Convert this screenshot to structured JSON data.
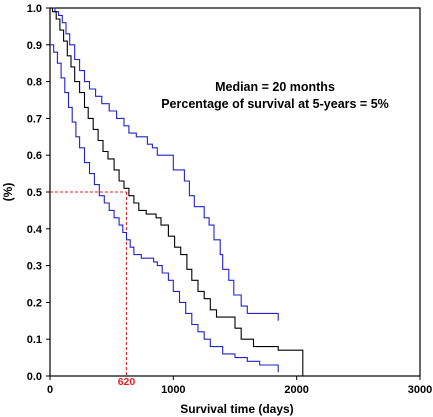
{
  "chart_data": {
    "type": "line",
    "title": "",
    "xlabel": "Survival time (days)",
    "ylabel": "(%)",
    "xlim": [
      0,
      3000
    ],
    "ylim": [
      0,
      1.0
    ],
    "xticks": [
      0,
      1000,
      2000,
      3000
    ],
    "yticks": [
      0.0,
      0.1,
      0.2,
      0.3,
      0.4,
      0.5,
      0.6,
      0.7,
      0.8,
      0.9,
      1.0
    ],
    "grid": false,
    "annotations": {
      "median_text": "Median = 20 months",
      "survival_text": "Percentage of survival at 5-years = 5%"
    },
    "median_marker": {
      "x": 620,
      "y": 0.5,
      "label": "620"
    },
    "series": [
      {
        "color": "#2222cc",
        "style": "step",
        "points": [
          [
            0,
            1.0
          ],
          [
            40,
            0.99
          ],
          [
            70,
            0.98
          ],
          [
            100,
            0.96
          ],
          [
            130,
            0.93
          ],
          [
            160,
            0.9
          ],
          [
            200,
            0.86
          ],
          [
            240,
            0.83
          ],
          [
            280,
            0.8
          ],
          [
            320,
            0.78
          ],
          [
            370,
            0.76
          ],
          [
            420,
            0.74
          ],
          [
            480,
            0.72
          ],
          [
            540,
            0.7
          ],
          [
            600,
            0.68
          ],
          [
            640,
            0.66
          ],
          [
            700,
            0.65
          ],
          [
            790,
            0.63
          ],
          [
            830,
            0.62
          ],
          [
            870,
            0.6
          ],
          [
            1000,
            0.56
          ],
          [
            1090,
            0.53
          ],
          [
            1130,
            0.49
          ],
          [
            1170,
            0.46
          ],
          [
            1250,
            0.43
          ],
          [
            1290,
            0.41
          ],
          [
            1330,
            0.37
          ],
          [
            1380,
            0.33
          ],
          [
            1400,
            0.29
          ],
          [
            1450,
            0.26
          ],
          [
            1490,
            0.22
          ],
          [
            1550,
            0.19
          ],
          [
            1600,
            0.17
          ],
          [
            1850,
            0.17
          ],
          [
            1850,
            0.15
          ]
        ]
      },
      {
        "color": "#000000",
        "style": "step",
        "points": [
          [
            0,
            1.0
          ],
          [
            20,
            0.99
          ],
          [
            50,
            0.97
          ],
          [
            80,
            0.94
          ],
          [
            110,
            0.91
          ],
          [
            140,
            0.87
          ],
          [
            170,
            0.84
          ],
          [
            200,
            0.8
          ],
          [
            240,
            0.77
          ],
          [
            280,
            0.73
          ],
          [
            310,
            0.7
          ],
          [
            350,
            0.67
          ],
          [
            390,
            0.64
          ],
          [
            430,
            0.61
          ],
          [
            470,
            0.59
          ],
          [
            520,
            0.56
          ],
          [
            560,
            0.53
          ],
          [
            600,
            0.51
          ],
          [
            640,
            0.49
          ],
          [
            680,
            0.47
          ],
          [
            720,
            0.45
          ],
          [
            780,
            0.44
          ],
          [
            860,
            0.43
          ],
          [
            900,
            0.41
          ],
          [
            960,
            0.38
          ],
          [
            1010,
            0.35
          ],
          [
            1060,
            0.33
          ],
          [
            1110,
            0.29
          ],
          [
            1150,
            0.26
          ],
          [
            1200,
            0.23
          ],
          [
            1250,
            0.21
          ],
          [
            1300,
            0.18
          ],
          [
            1350,
            0.16
          ],
          [
            1500,
            0.13
          ],
          [
            1550,
            0.1
          ],
          [
            1650,
            0.08
          ],
          [
            1850,
            0.07
          ],
          [
            2050,
            0.04
          ],
          [
            2050,
            0.0
          ]
        ]
      },
      {
        "color": "#2222cc",
        "style": "step",
        "points": [
          [
            0,
            0.9
          ],
          [
            30,
            0.88
          ],
          [
            60,
            0.85
          ],
          [
            90,
            0.81
          ],
          [
            120,
            0.77
          ],
          [
            150,
            0.73
          ],
          [
            180,
            0.69
          ],
          [
            210,
            0.65
          ],
          [
            240,
            0.62
          ],
          [
            280,
            0.58
          ],
          [
            320,
            0.55
          ],
          [
            360,
            0.52
          ],
          [
            400,
            0.49
          ],
          [
            440,
            0.47
          ],
          [
            480,
            0.45
          ],
          [
            520,
            0.43
          ],
          [
            560,
            0.41
          ],
          [
            590,
            0.39
          ],
          [
            620,
            0.37
          ],
          [
            650,
            0.35
          ],
          [
            680,
            0.33
          ],
          [
            740,
            0.32
          ],
          [
            840,
            0.31
          ],
          [
            870,
            0.3
          ],
          [
            910,
            0.28
          ],
          [
            960,
            0.26
          ],
          [
            1000,
            0.23
          ],
          [
            1050,
            0.2
          ],
          [
            1100,
            0.17
          ],
          [
            1150,
            0.14
          ],
          [
            1200,
            0.12
          ],
          [
            1250,
            0.1
          ],
          [
            1300,
            0.08
          ],
          [
            1400,
            0.06
          ],
          [
            1500,
            0.05
          ],
          [
            1600,
            0.04
          ],
          [
            1700,
            0.03
          ],
          [
            1850,
            0.02
          ],
          [
            1850,
            0.01
          ]
        ]
      }
    ]
  }
}
